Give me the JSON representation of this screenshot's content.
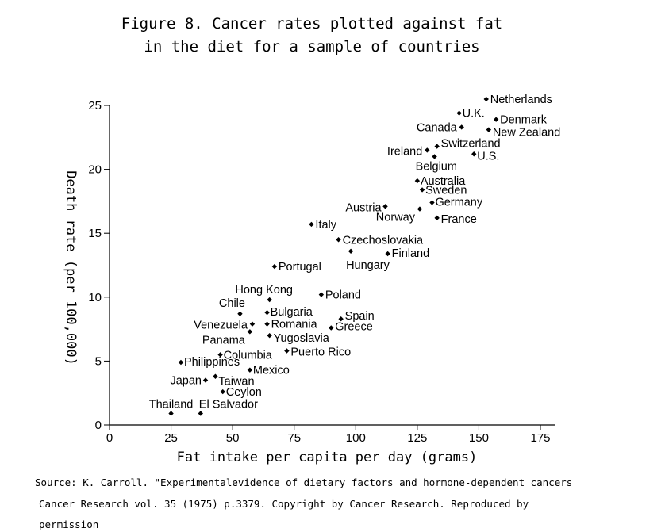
{
  "chart_data": {
    "type": "scatter",
    "title": "Figure 8. Cancer rates plotted against fat",
    "subtitle": "in the diet for a sample of countries",
    "xlabel": "Fat intake per capita per day (grams)",
    "ylabel": "Death rate (per 100,000)",
    "xlim": [
      0,
      175
    ],
    "ylim": [
      0,
      25
    ],
    "x_ticks": [
      0,
      25,
      50,
      75,
      100,
      125,
      150,
      175
    ],
    "y_ticks": [
      0,
      5,
      10,
      15,
      20,
      25
    ],
    "grid": false,
    "points": [
      {
        "label": "Netherlands",
        "x": 153,
        "y": 25.5
      },
      {
        "label": "U.K.",
        "x": 142,
        "y": 24.4
      },
      {
        "label": "Denmark",
        "x": 157,
        "y": 23.9
      },
      {
        "label": "Canada",
        "x": 143,
        "y": 23.3
      },
      {
        "label": "New Zealand",
        "x": 154,
        "y": 23.1
      },
      {
        "label": "Ireland",
        "x": 129,
        "y": 21.5
      },
      {
        "label": "Switzerland",
        "x": 133,
        "y": 21.8
      },
      {
        "label": "U.S.",
        "x": 148,
        "y": 21.2
      },
      {
        "label": "Belgium",
        "x": 132,
        "y": 21.0
      },
      {
        "label": "Australia",
        "x": 125,
        "y": 19.1
      },
      {
        "label": "Sweden",
        "x": 127,
        "y": 18.4
      },
      {
        "label": "Austria",
        "x": 112,
        "y": 17.1
      },
      {
        "label": "Germany",
        "x": 131,
        "y": 17.4
      },
      {
        "label": "Norway",
        "x": 126,
        "y": 16.9
      },
      {
        "label": "France",
        "x": 133,
        "y": 16.2
      },
      {
        "label": "Italy",
        "x": 82,
        "y": 15.7
      },
      {
        "label": "Czechoslovakia",
        "x": 93,
        "y": 14.5
      },
      {
        "label": "Hungary",
        "x": 98,
        "y": 13.6
      },
      {
        "label": "Finland",
        "x": 113,
        "y": 13.4
      },
      {
        "label": "Portugal",
        "x": 67,
        "y": 12.4
      },
      {
        "label": "Hong Kong",
        "x": 65,
        "y": 9.8
      },
      {
        "label": "Poland",
        "x": 86,
        "y": 10.2
      },
      {
        "label": "Chile",
        "x": 53,
        "y": 8.7
      },
      {
        "label": "Bulgaria",
        "x": 64,
        "y": 8.8
      },
      {
        "label": "Spain",
        "x": 94,
        "y": 8.3
      },
      {
        "label": "Venezuela",
        "x": 58,
        "y": 7.9
      },
      {
        "label": "Romania",
        "x": 64,
        "y": 7.9
      },
      {
        "label": "Greece",
        "x": 90,
        "y": 7.6
      },
      {
        "label": "Panama",
        "x": 57,
        "y": 7.3
      },
      {
        "label": "Yugoslavia",
        "x": 65,
        "y": 7.0
      },
      {
        "label": "Puerto Rico",
        "x": 72,
        "y": 5.8
      },
      {
        "label": "Columbia",
        "x": 45,
        "y": 5.5
      },
      {
        "label": "Philippines",
        "x": 29,
        "y": 4.9
      },
      {
        "label": "Mexico",
        "x": 57,
        "y": 4.3
      },
      {
        "label": "Japan",
        "x": 39,
        "y": 3.5
      },
      {
        "label": "Taiwan",
        "x": 43,
        "y": 3.8
      },
      {
        "label": "Ceylon",
        "x": 46,
        "y": 2.6
      },
      {
        "label": "Thailand",
        "x": 25,
        "y": 0.9
      },
      {
        "label": "El Salvador",
        "x": 37,
        "y": 0.9
      }
    ]
  },
  "source": {
    "line1": "Source: K. Carroll. \"Experimentalevidence of dietary factors and hormone-dependent cancers",
    "line2": "Cancer Research vol. 35 (1975) p.3379.  Copyright by Cancer Research. Reproduced  by",
    "line3": "permission"
  }
}
